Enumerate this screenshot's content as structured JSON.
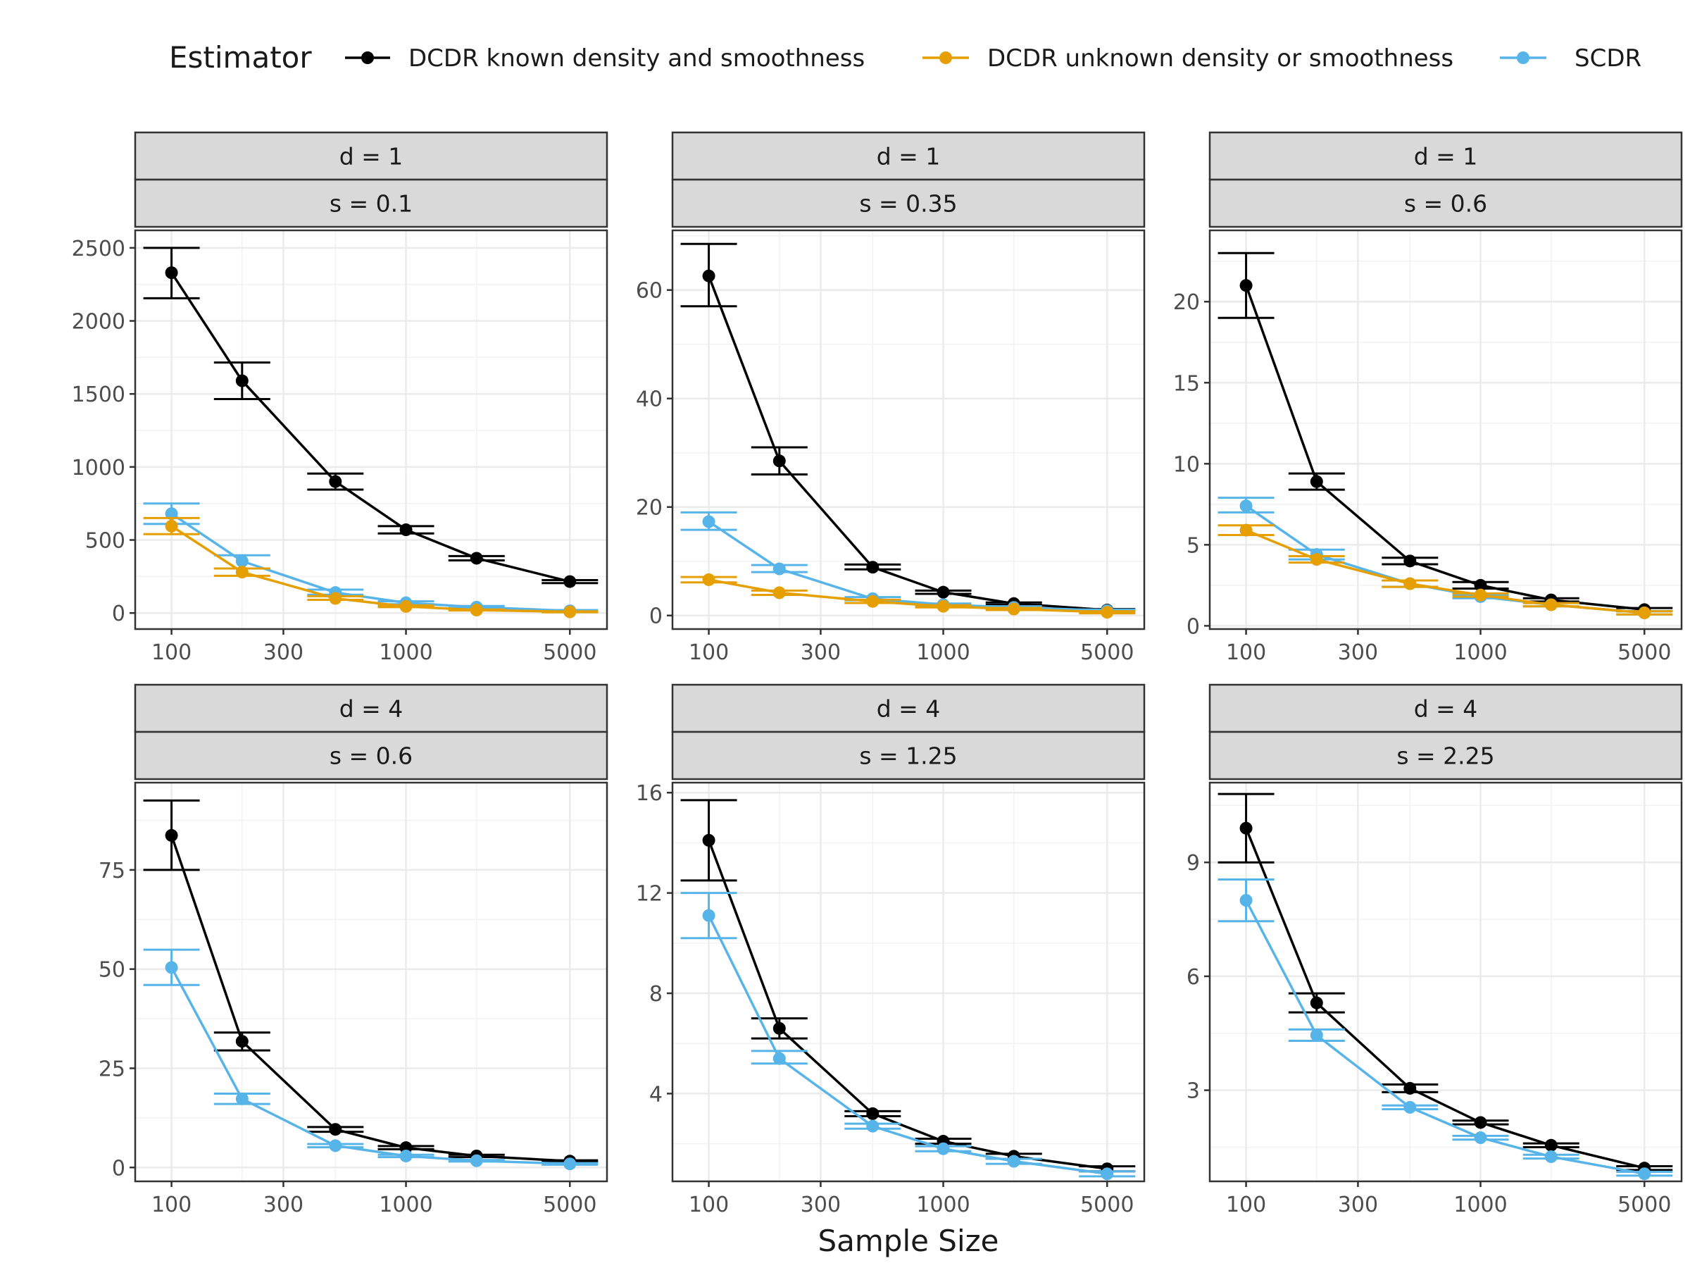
{
  "legend": {
    "title": "Estimator",
    "items": [
      {
        "label": "DCDR known density and smoothness",
        "color": "#000000"
      },
      {
        "label": "DCDR unknown density or smoothness",
        "color": "#E69F00"
      },
      {
        "label": "SCDR",
        "color": "#56B4E9"
      }
    ]
  },
  "xlabel": "Sample Size",
  "chart_data": {
    "type": "line",
    "x_scale": "log10",
    "x": [
      100,
      200,
      500,
      1000,
      2000,
      5000
    ],
    "x_ticks": [
      100,
      300,
      1000,
      5000
    ],
    "xlim": [
      70,
      7200
    ],
    "facets": [
      {
        "strip_top": "d = 1",
        "strip_bottom": "s = 0.1",
        "ylim": [
          -110,
          2620
        ],
        "yticks": [
          0,
          500,
          1000,
          1500,
          2000,
          2500
        ],
        "series": [
          {
            "name": "DCDR known density and smoothness",
            "y": [
              2330,
              1590,
              900,
              570,
              375,
              215
            ],
            "lo": [
              2155,
              1465,
              845,
              545,
              360,
              205
            ],
            "hi": [
              2500,
              1715,
              955,
              595,
              390,
              225
            ]
          },
          {
            "name": "SCDR",
            "y": [
              680,
              355,
              140,
              70,
              40,
              15
            ],
            "lo": [
              610,
              305,
              125,
              60,
              33,
              10
            ],
            "hi": [
              750,
              395,
              160,
              80,
              48,
              20
            ]
          },
          {
            "name": "DCDR unknown density or smoothness",
            "y": [
              595,
              280,
              100,
              45,
              20,
              8
            ],
            "lo": [
              540,
              255,
              90,
              40,
              17,
              5
            ],
            "hi": [
              650,
              305,
              115,
              52,
              24,
              11
            ]
          }
        ]
      },
      {
        "strip_top": "d = 1",
        "strip_bottom": "s = 0.35",
        "ylim": [
          -2.5,
          71
        ],
        "yticks": [
          0,
          20,
          40,
          60
        ],
        "series": [
          {
            "name": "DCDR known density and smoothness",
            "y": [
              62.6,
              28.5,
              8.9,
              4.3,
              2.2,
              1.0
            ],
            "lo": [
              57,
              26,
              8.5,
              4.0,
              2.0,
              0.8
            ],
            "hi": [
              68.5,
              31,
              9.4,
              4.6,
              2.4,
              1.2
            ]
          },
          {
            "name": "SCDR",
            "y": [
              17.3,
              8.6,
              3.1,
              2.0,
              1.5,
              0.9
            ],
            "lo": [
              15.8,
              8.0,
              2.8,
              1.8,
              1.3,
              0.7
            ],
            "hi": [
              19.0,
              9.3,
              3.4,
              2.2,
              1.7,
              1.1
            ]
          },
          {
            "name": "DCDR unknown density or smoothness",
            "y": [
              6.6,
              4.2,
              2.6,
              1.7,
              1.2,
              0.6
            ],
            "lo": [
              6.1,
              3.8,
              2.3,
              1.5,
              1.0,
              0.4
            ],
            "hi": [
              7.1,
              4.6,
              2.9,
              1.9,
              1.4,
              0.8
            ]
          }
        ]
      },
      {
        "strip_top": "d = 1",
        "strip_bottom": "s = 0.6",
        "ylim": [
          -0.2,
          24.4
        ],
        "yticks": [
          0,
          5,
          10,
          15,
          20
        ],
        "series": [
          {
            "name": "DCDR known density and smoothness",
            "y": [
              21.0,
              8.9,
              4.0,
              2.5,
              1.6,
              1.0
            ],
            "lo": [
              19.0,
              8.4,
              3.8,
              2.3,
              1.5,
              0.9
            ],
            "hi": [
              23.0,
              9.4,
              4.2,
              2.7,
              1.7,
              1.1
            ]
          },
          {
            "name": "SCDR",
            "y": [
              7.4,
              4.4,
              2.6,
              1.8,
              1.3,
              0.8
            ],
            "lo": [
              7.0,
              4.1,
              2.4,
              1.7,
              1.2,
              0.7
            ],
            "hi": [
              7.9,
              4.7,
              2.8,
              1.9,
              1.4,
              0.9
            ]
          },
          {
            "name": "DCDR unknown density or smoothness",
            "y": [
              5.9,
              4.1,
              2.6,
              1.9,
              1.3,
              0.8
            ],
            "lo": [
              5.6,
              3.9,
              2.4,
              1.8,
              1.2,
              0.7
            ],
            "hi": [
              6.2,
              4.3,
              2.8,
              2.0,
              1.4,
              0.9
            ]
          }
        ]
      },
      {
        "strip_top": "d = 4",
        "strip_bottom": "s = 0.6",
        "ylim": [
          -3.5,
          97
        ],
        "yticks": [
          0,
          25,
          50,
          75
        ],
        "series": [
          {
            "name": "DCDR known density and smoothness",
            "y": [
              83.7,
              31.8,
              9.6,
              5.0,
              2.9,
              1.6
            ],
            "lo": [
              75,
              29.5,
              9.0,
              4.6,
              2.6,
              1.4
            ],
            "hi": [
              92.5,
              34.0,
              10.2,
              5.4,
              3.2,
              1.8
            ]
          },
          {
            "name": "SCDR",
            "y": [
              50.4,
              17.3,
              5.5,
              2.9,
              1.7,
              0.9
            ],
            "lo": [
              46.0,
              16.0,
              5.1,
              2.6,
              1.5,
              0.7
            ],
            "hi": [
              54.9,
              18.6,
              5.9,
              3.2,
              1.9,
              1.1
            ]
          }
        ]
      },
      {
        "strip_top": "d = 4",
        "strip_bottom": "s = 1.25",
        "ylim": [
          0.5,
          16.4
        ],
        "yticks": [
          4,
          8,
          12,
          16
        ],
        "series": [
          {
            "name": "DCDR known density and smoothness",
            "y": [
              14.1,
              6.6,
              3.2,
              2.1,
              1.5,
              1.0
            ],
            "lo": [
              12.5,
              6.2,
              3.1,
              2.0,
              1.4,
              0.9
            ],
            "hi": [
              15.7,
              7.0,
              3.3,
              2.2,
              1.6,
              1.1
            ]
          },
          {
            "name": "SCDR",
            "y": [
              11.1,
              5.4,
              2.7,
              1.8,
              1.3,
              0.8
            ],
            "lo": [
              10.2,
              5.2,
              2.6,
              1.7,
              1.2,
              0.7
            ],
            "hi": [
              12.0,
              5.7,
              2.8,
              1.9,
              1.4,
              0.9
            ]
          }
        ]
      },
      {
        "strip_top": "d = 4",
        "strip_bottom": "s = 2.25",
        "ylim": [
          0.6,
          11.1
        ],
        "yticks": [
          3,
          6,
          9
        ],
        "series": [
          {
            "name": "DCDR known density and smoothness",
            "y": [
              9.9,
              5.3,
              3.05,
              2.15,
              1.55,
              0.95
            ],
            "lo": [
              9.0,
              5.05,
              2.95,
              2.1,
              1.5,
              0.9
            ],
            "hi": [
              10.8,
              5.55,
              3.15,
              2.2,
              1.6,
              1.0
            ]
          },
          {
            "name": "SCDR",
            "y": [
              8.0,
              4.45,
              2.55,
              1.75,
              1.25,
              0.8
            ],
            "lo": [
              7.45,
              4.3,
              2.5,
              1.7,
              1.2,
              0.75
            ],
            "hi": [
              8.55,
              4.6,
              2.6,
              1.8,
              1.3,
              0.85
            ]
          }
        ]
      }
    ]
  }
}
